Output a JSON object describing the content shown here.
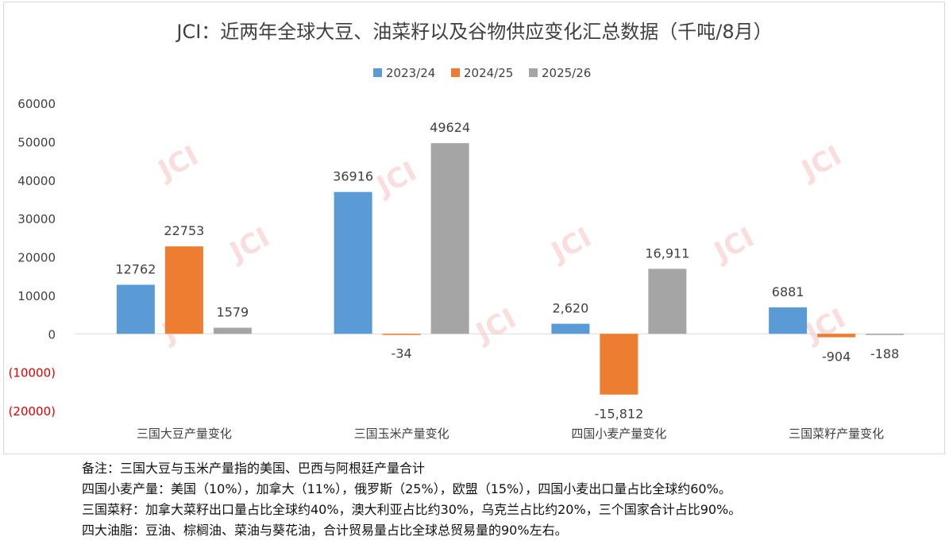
{
  "title": "JCI：近两年全球大豆、油菜籽以及谷物供应变化汇总数据（千吨/8月）",
  "watermark": "JCI",
  "chart_data": {
    "type": "bar",
    "title": "JCI：近两年全球大豆、油菜籽以及谷物供应变化汇总数据（千吨/8月）",
    "categories": [
      "三国大豆产量变化",
      "三国玉米产量变化",
      "四国小麦产量变化",
      "三国菜籽产量变化"
    ],
    "series": [
      {
        "name": "2023/24",
        "color": "#5b9bd5",
        "values": [
          12762,
          36916,
          2620,
          6881
        ],
        "labels": [
          "12762",
          "36916",
          "2,620",
          "6881"
        ]
      },
      {
        "name": "2024/25",
        "color": "#ed7d31",
        "values": [
          22753,
          -34,
          -15812,
          -904
        ],
        "labels": [
          "22753",
          "-34",
          "-15,812",
          "-904"
        ]
      },
      {
        "name": "2025/26",
        "color": "#a5a5a5",
        "values": [
          1579,
          49624,
          16911,
          -188
        ],
        "labels": [
          "1579",
          "49624",
          "16,911",
          "-188"
        ]
      }
    ],
    "ylim": [
      -20000,
      60000
    ],
    "yticks": [
      60000,
      50000,
      40000,
      30000,
      20000,
      10000,
      0,
      -10000,
      -20000
    ],
    "ytick_labels": [
      "60000",
      "50000",
      "40000",
      "30000",
      "20000",
      "10000",
      "0",
      "(10000)",
      "(20000)"
    ],
    "negative_tick_color": "#e00000",
    "legend_position": "top-center",
    "grid": false
  },
  "notes": [
    "备注：三国大豆与玉米产量指的美国、巴西与阿根廷产量合计",
    "四国小麦产量：美国（10%），加拿大（11%），俄罗斯（25%），欧盟（15%），四国小麦出口量占比全球约60%。",
    "三国菜籽：加拿大菜籽出口量占比全球约40%，澳大利亚占比约30%，乌克兰占比约20%，三个国家合计占比90%。",
    "四大油脂：豆油、棕榈油、菜油与葵花油，合计贸易量占比全球总贸易量的90%左右。"
  ]
}
